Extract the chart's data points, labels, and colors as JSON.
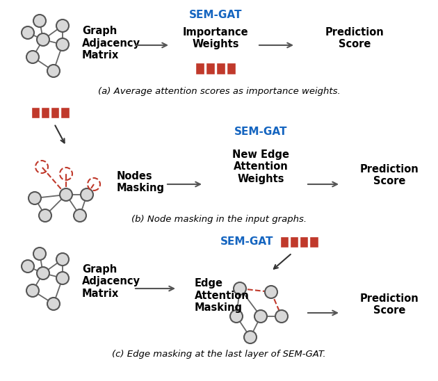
{
  "bg_color": "#ffffff",
  "sem_gat_color": "#1565C0",
  "bar_color": "#C0392B",
  "node_fill": "#d8d8d8",
  "node_edge_color": "#555555",
  "edge_color": "#666666",
  "arrow_color": "#555555",
  "red_dash_color": "#C0392B",
  "text_color": "#000000",
  "caption_a": "(a) Average attention scores as importance weights.",
  "caption_b": "(b) Node masking in the input graphs.",
  "caption_c": "(c) Edge masking at the last layer of SEM-GAT.",
  "label_sem_gat": "SEM-GAT",
  "label_importance": "Importance\nWeights",
  "label_prediction": "Prediction\nScore",
  "label_graph_adj": "Graph\nAdjacency\nMatrix",
  "label_nodes_masking": "Nodes\nMasking",
  "label_new_edge": "New Edge\nAttention\nWeights",
  "label_edge_masking": "Edge\nAttention\nMasking"
}
